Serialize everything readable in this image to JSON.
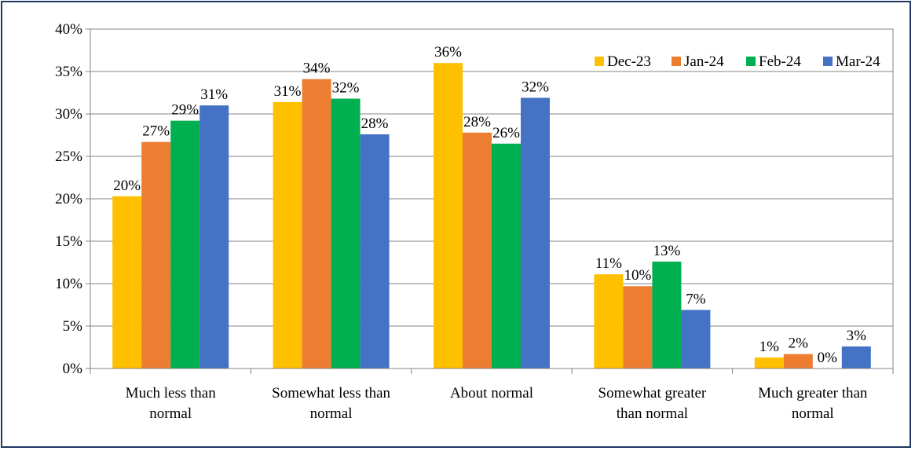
{
  "chart_data": {
    "type": "bar",
    "categories": [
      [
        "Much less than",
        "normal"
      ],
      [
        "Somewhat less than",
        "normal"
      ],
      [
        "About normal"
      ],
      [
        "Somewhat greater",
        "than normal"
      ],
      [
        "Much greater than",
        "normal"
      ]
    ],
    "series": [
      {
        "name": "Dec-23",
        "color": "#FFC000",
        "values": [
          20.3,
          31.4,
          36.0,
          11.1,
          1.3
        ],
        "labels": [
          "20%",
          "31%",
          "36%",
          "11%",
          "1%"
        ]
      },
      {
        "name": "Jan-24",
        "color": "#ED7D31",
        "values": [
          26.7,
          34.1,
          27.8,
          9.7,
          1.7
        ],
        "labels": [
          "27%",
          "34%",
          "28%",
          "10%",
          "2%"
        ]
      },
      {
        "name": "Feb-24",
        "color": "#00B050",
        "values": [
          29.2,
          31.8,
          26.5,
          12.6,
          0.0
        ],
        "labels": [
          "29%",
          "32%",
          "26%",
          "13%",
          "0%"
        ]
      },
      {
        "name": "Mar-24",
        "color": "#4472C4",
        "values": [
          31.0,
          27.6,
          31.9,
          6.9,
          2.6
        ],
        "labels": [
          "31%",
          "28%",
          "32%",
          "7%",
          "3%"
        ]
      }
    ],
    "yticks": [
      "0%",
      "5%",
      "10%",
      "15%",
      "20%",
      "25%",
      "30%",
      "35%",
      "40%"
    ],
    "ylim": [
      0,
      40
    ],
    "grid": true,
    "legend_position": "top-right",
    "title": "",
    "xlabel": "",
    "ylabel": ""
  }
}
